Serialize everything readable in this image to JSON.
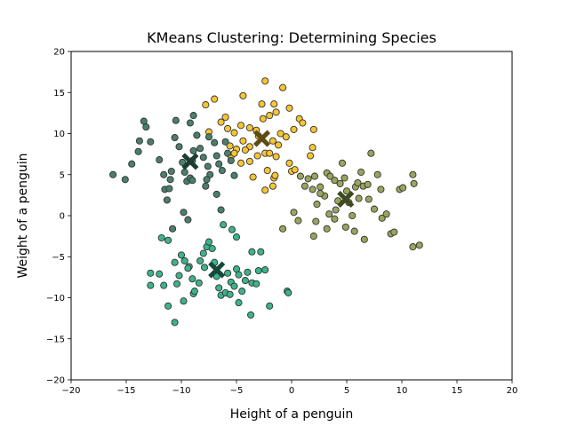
{
  "chart_data": {
    "type": "scatter",
    "title": "KMeans Clustering: Determining Species",
    "xlabel": "Height of a penguin",
    "ylabel": "Weight of a penguin",
    "xlim": [
      -20,
      20
    ],
    "ylim": [
      -20,
      20
    ],
    "xticks": [
      -20,
      -15,
      -10,
      -5,
      0,
      5,
      10,
      15,
      20
    ],
    "yticks": [
      -20,
      -15,
      -10,
      -5,
      0,
      5,
      10,
      15,
      20
    ],
    "xtick_labels": [
      "−20",
      "−15",
      "−10",
      "−5",
      "0",
      "5",
      "10",
      "15",
      "20"
    ],
    "ytick_labels": [
      "−20",
      "−15",
      "−10",
      "−5",
      "0",
      "5",
      "10",
      "15",
      "20"
    ],
    "grid": false,
    "series": [
      {
        "color": "#f7c531",
        "points": [
          [
            -7.8,
            13.5
          ],
          [
            -7.0,
            14.2
          ],
          [
            -6.0,
            12.0
          ],
          [
            -4.4,
            14.6
          ],
          [
            -2.7,
            13.6
          ],
          [
            -2.4,
            16.4
          ],
          [
            -1.6,
            13.6
          ],
          [
            -0.8,
            15.6
          ],
          [
            -0.2,
            13.1
          ],
          [
            -7.5,
            10.2
          ],
          [
            -6.4,
            11.4
          ],
          [
            -5.8,
            10.6
          ],
          [
            -5.2,
            10.1
          ],
          [
            -4.6,
            11.0
          ],
          [
            -3.8,
            10.7
          ],
          [
            -3.2,
            10.4
          ],
          [
            -2.6,
            11.8
          ],
          [
            -2.0,
            12.2
          ],
          [
            -1.4,
            12.6
          ],
          [
            -1.0,
            10.0
          ],
          [
            0.2,
            10.5
          ],
          [
            0.7,
            11.8
          ],
          [
            1.0,
            11.3
          ],
          [
            2.0,
            10.5
          ],
          [
            -5.6,
            8.5
          ],
          [
            -5.0,
            8.1
          ],
          [
            -4.4,
            9.1
          ],
          [
            -3.8,
            8.4
          ],
          [
            -3.0,
            9.7
          ],
          [
            -2.4,
            7.6
          ],
          [
            -1.7,
            9.1
          ],
          [
            -1.2,
            8.6
          ],
          [
            -0.5,
            9.6
          ],
          [
            1.9,
            8.3
          ],
          [
            1.7,
            7.3
          ],
          [
            -5.5,
            7.2
          ],
          [
            -4.6,
            6.4
          ],
          [
            -3.8,
            6.6
          ],
          [
            -3.1,
            7.3
          ],
          [
            -2.0,
            7.6
          ],
          [
            -1.4,
            7.2
          ],
          [
            -0.2,
            6.4
          ],
          [
            0.0,
            5.4
          ],
          [
            -4.2,
            8.0
          ],
          [
            -5.2,
            7.6
          ],
          [
            -2.2,
            5.5
          ],
          [
            -1.6,
            4.6
          ],
          [
            -3.5,
            4.7
          ],
          [
            -2.4,
            3.1
          ],
          [
            -1.7,
            3.6
          ],
          [
            -1.5,
            4.9
          ],
          [
            0.3,
            5.6
          ]
        ]
      },
      {
        "color": "#4a7f6b",
        "points": [
          [
            -16.2,
            5.0
          ],
          [
            -15.1,
            4.4
          ],
          [
            -14.5,
            6.3
          ],
          [
            -13.9,
            7.8
          ],
          [
            -13.8,
            9.1
          ],
          [
            -13.4,
            11.5
          ],
          [
            -13.2,
            10.8
          ],
          [
            -12.8,
            9.0
          ],
          [
            -12.0,
            6.8
          ],
          [
            -11.6,
            5.0
          ],
          [
            -11.5,
            3.2
          ],
          [
            -11.3,
            1.9
          ],
          [
            -11.0,
            4.4
          ],
          [
            -11.1,
            3.3
          ],
          [
            -10.9,
            5.4
          ],
          [
            -10.6,
            9.5
          ],
          [
            -10.5,
            11.6
          ],
          [
            -10.2,
            8.4
          ],
          [
            -9.9,
            6.5
          ],
          [
            -9.7,
            5.3
          ],
          [
            -9.5,
            4.2
          ],
          [
            -9.2,
            4.6
          ],
          [
            -9.0,
            4.3
          ],
          [
            -9.2,
            11.3
          ],
          [
            -8.9,
            12.2
          ],
          [
            -8.6,
            9.8
          ],
          [
            -8.3,
            8.2
          ],
          [
            -8.0,
            7.1
          ],
          [
            -7.6,
            6.0
          ],
          [
            -7.4,
            5.0
          ],
          [
            -7.7,
            4.4
          ],
          [
            -7.8,
            3.6
          ],
          [
            -7.5,
            9.6
          ],
          [
            -7.0,
            8.9
          ],
          [
            -6.8,
            7.3
          ],
          [
            -6.6,
            6.3
          ],
          [
            -6.3,
            5.5
          ],
          [
            -6.0,
            9.0
          ],
          [
            -5.8,
            7.6
          ],
          [
            -5.5,
            6.7
          ],
          [
            -5.2,
            4.9
          ],
          [
            -6.8,
            2.6
          ],
          [
            -6.4,
            0.7
          ],
          [
            -9.8,
            0.4
          ],
          [
            -9.4,
            -0.5
          ],
          [
            -10.8,
            -1.6
          ],
          [
            -8.9,
            7.9
          ],
          [
            -9.0,
            6.7
          ]
        ]
      },
      {
        "color": "#98a55d",
        "points": [
          [
            -0.8,
            -1.6
          ],
          [
            0.2,
            0.4
          ],
          [
            0.6,
            -0.6
          ],
          [
            0.8,
            4.8
          ],
          [
            1.2,
            3.6
          ],
          [
            1.5,
            4.5
          ],
          [
            1.9,
            3.2
          ],
          [
            2.1,
            4.8
          ],
          [
            2.3,
            1.4
          ],
          [
            2.6,
            3.5
          ],
          [
            2.2,
            -0.7
          ],
          [
            2.0,
            -2.5
          ],
          [
            3.0,
            2.4
          ],
          [
            3.2,
            5.2
          ],
          [
            3.5,
            4.8
          ],
          [
            3.9,
            4.3
          ],
          [
            3.4,
            0.2
          ],
          [
            3.9,
            -0.4
          ],
          [
            4.2,
            1.8
          ],
          [
            4.4,
            3.9
          ],
          [
            4.6,
            6.4
          ],
          [
            4.8,
            4.6
          ],
          [
            5.0,
            3.0
          ],
          [
            5.2,
            1.6
          ],
          [
            5.5,
            0.0
          ],
          [
            5.8,
            3.5
          ],
          [
            6.0,
            4.0
          ],
          [
            6.3,
            5.3
          ],
          [
            6.5,
            3.6
          ],
          [
            6.9,
            3.8
          ],
          [
            7.2,
            7.6
          ],
          [
            7.0,
            2.0
          ],
          [
            7.5,
            0.8
          ],
          [
            7.8,
            5.0
          ],
          [
            8.1,
            3.2
          ],
          [
            8.2,
            -0.3
          ],
          [
            8.6,
            0.2
          ],
          [
            9.0,
            -2.2
          ],
          [
            9.3,
            -2.0
          ],
          [
            9.8,
            3.2
          ],
          [
            10.1,
            3.4
          ],
          [
            11.0,
            5.0
          ],
          [
            11.1,
            3.9
          ],
          [
            11.0,
            -3.8
          ],
          [
            11.6,
            -3.6
          ],
          [
            6.6,
            -2.9
          ],
          [
            5.7,
            -1.9
          ],
          [
            4.9,
            -1.4
          ],
          [
            3.2,
            -1.6
          ],
          [
            4.0,
            0.7
          ],
          [
            6.1,
            2.1
          ],
          [
            2.6,
            2.7
          ]
        ]
      },
      {
        "color": "#3cb48a",
        "points": [
          [
            -11.8,
            -2.7
          ],
          [
            -11.2,
            -3.0
          ],
          [
            -10.6,
            -5.7
          ],
          [
            -10.0,
            -4.8
          ],
          [
            -9.7,
            -5.5
          ],
          [
            -9.3,
            -6.2
          ],
          [
            -9.0,
            -7.7
          ],
          [
            -8.9,
            -9.5
          ],
          [
            -8.8,
            -9.2
          ],
          [
            -12.8,
            -7.0
          ],
          [
            -12.8,
            -8.5
          ],
          [
            -12.0,
            -7.1
          ],
          [
            -11.6,
            -8.5
          ],
          [
            -11.2,
            -11.0
          ],
          [
            -10.2,
            -7.3
          ],
          [
            -10.4,
            -8.3
          ],
          [
            -10.6,
            -13.0
          ],
          [
            -9.8,
            -10.4
          ],
          [
            -8.3,
            -5.5
          ],
          [
            -8.0,
            -4.6
          ],
          [
            -7.7,
            -3.8
          ],
          [
            -7.5,
            -3.2
          ],
          [
            -7.2,
            -4.0
          ],
          [
            -7.0,
            -5.7
          ],
          [
            -6.8,
            -7.4
          ],
          [
            -6.6,
            -8.8
          ],
          [
            -6.4,
            -9.7
          ],
          [
            -6.0,
            -9.4
          ],
          [
            -5.8,
            -7.0
          ],
          [
            -5.5,
            -8.1
          ],
          [
            -5.2,
            -8.6
          ],
          [
            -5.0,
            -6.5
          ],
          [
            -4.8,
            -7.2
          ],
          [
            -4.5,
            -9.2
          ],
          [
            -4.2,
            -7.9
          ],
          [
            -4.0,
            -6.9
          ],
          [
            -3.6,
            -8.2
          ],
          [
            -3.2,
            -8.3
          ],
          [
            -3.0,
            -6.7
          ],
          [
            -2.4,
            -6.6
          ],
          [
            -2.0,
            -11.0
          ],
          [
            -3.7,
            -12.1
          ],
          [
            -4.8,
            -10.6
          ],
          [
            -5.6,
            -9.6
          ],
          [
            -6.2,
            -1.1
          ],
          [
            -5.4,
            -1.7
          ],
          [
            -5.0,
            -2.6
          ],
          [
            -3.6,
            -4.4
          ],
          [
            -2.8,
            -4.4
          ],
          [
            -0.4,
            -9.2
          ],
          [
            -0.3,
            -9.4
          ],
          [
            -8.4,
            -8.2
          ],
          [
            -9.4,
            -6.4
          ],
          [
            -7.9,
            -6.3
          ]
        ]
      }
    ],
    "centroids": [
      {
        "x": -2.7,
        "y": 9.4,
        "color": "#5c4b12"
      },
      {
        "x": -9.2,
        "y": 6.6,
        "color": "#1b3d33"
      },
      {
        "x": 4.9,
        "y": 2.0,
        "color": "#3e4a20"
      },
      {
        "x": -6.8,
        "y": -6.6,
        "color": "#13493a"
      }
    ]
  }
}
